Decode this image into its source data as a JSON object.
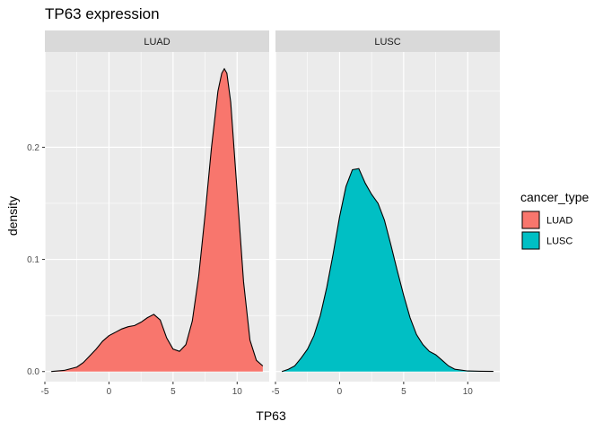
{
  "chart_data": {
    "type": "area",
    "subtype": "density",
    "title": "TP63 expression",
    "xlabel": "TP63",
    "ylabel": "density",
    "xlim": [
      -5,
      12.5
    ],
    "ylim": [
      -0.009,
      0.285
    ],
    "x_ticks": [
      -5,
      0,
      5,
      10
    ],
    "x_tick_labels": [
      "-5",
      "0",
      "5",
      "10"
    ],
    "y_ticks": [
      0.0,
      0.1,
      0.2
    ],
    "y_tick_labels": [
      "0.0",
      "0.1",
      "0.2"
    ],
    "grid": true,
    "legend": {
      "title": "cancer_type",
      "position": "right",
      "entries": [
        {
          "label": "LUAD",
          "color": "#F8766D"
        },
        {
          "label": "LUSC",
          "color": "#00BFC4"
        }
      ]
    },
    "panels": [
      {
        "label": "LUAD",
        "color": "#F8766D",
        "x": [
          -4.5,
          -3.5,
          -2.5,
          -2.0,
          -1.5,
          -1.0,
          -0.5,
          0.0,
          0.5,
          1.0,
          1.5,
          2.0,
          2.5,
          3.0,
          3.5,
          4.0,
          4.5,
          5.0,
          5.5,
          6.0,
          6.5,
          7.0,
          7.5,
          8.0,
          8.5,
          8.8,
          9.0,
          9.2,
          9.5,
          10.0,
          10.5,
          11.0,
          11.5,
          12.0
        ],
        "y": [
          0.0,
          0.001,
          0.004,
          0.008,
          0.014,
          0.02,
          0.027,
          0.032,
          0.035,
          0.038,
          0.04,
          0.041,
          0.044,
          0.048,
          0.051,
          0.046,
          0.03,
          0.02,
          0.018,
          0.024,
          0.045,
          0.085,
          0.14,
          0.2,
          0.25,
          0.266,
          0.27,
          0.266,
          0.24,
          0.16,
          0.08,
          0.028,
          0.01,
          0.005
        ]
      },
      {
        "label": "LUSC",
        "color": "#00BFC4",
        "x": [
          -4.5,
          -4.0,
          -3.5,
          -3.0,
          -2.5,
          -2.0,
          -1.5,
          -1.0,
          -0.5,
          0.0,
          0.5,
          1.0,
          1.5,
          2.0,
          2.5,
          3.0,
          3.5,
          4.0,
          4.5,
          5.0,
          5.5,
          6.0,
          6.5,
          7.0,
          7.5,
          8.0,
          8.5,
          9.0,
          10.0,
          11.0,
          12.0
        ],
        "y": [
          0.0,
          0.002,
          0.005,
          0.012,
          0.02,
          0.032,
          0.05,
          0.075,
          0.105,
          0.138,
          0.165,
          0.18,
          0.181,
          0.168,
          0.158,
          0.15,
          0.135,
          0.113,
          0.09,
          0.068,
          0.048,
          0.033,
          0.024,
          0.018,
          0.015,
          0.01,
          0.005,
          0.002,
          0.0005,
          0.0002,
          0.0001
        ]
      }
    ]
  }
}
